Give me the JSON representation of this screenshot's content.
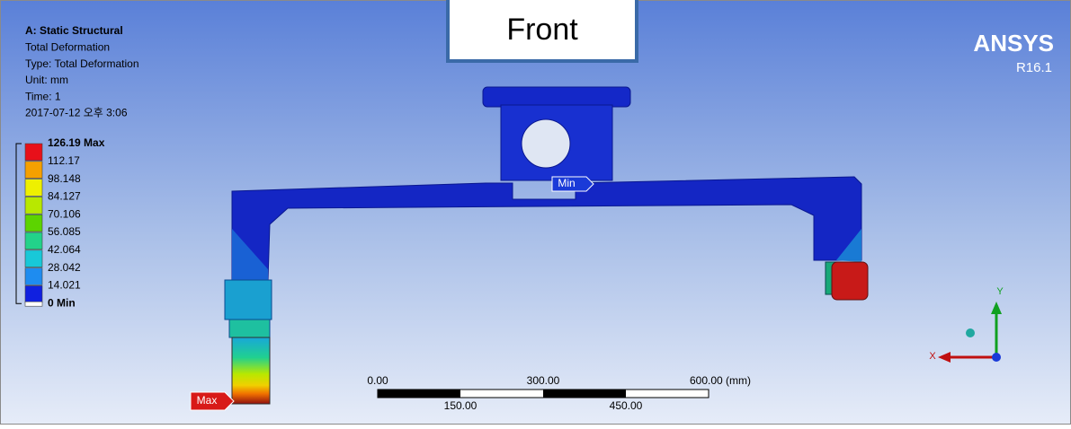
{
  "view_label": "Front",
  "header": {
    "lines": [
      "A: Static Structural",
      "Total Deformation",
      "Type: Total Deformation",
      "Unit: mm",
      "Time: 1",
      "2017-07-12 오후 3:06"
    ]
  },
  "brand": {
    "name": "ANSYS",
    "version": "R16.1"
  },
  "legend": {
    "labels": [
      "126.19 Max",
      "112.17",
      "98.148",
      "84.127",
      "70.106",
      "56.085",
      "42.064",
      "28.042",
      "14.021",
      "0 Min"
    ],
    "colors": [
      "#e8101a",
      "#f5a000",
      "#eef000",
      "#b8e800",
      "#5cd400",
      "#22d28a",
      "#18c8d8",
      "#1e8cf0",
      "#1020e0"
    ]
  },
  "probes": {
    "min": "Min",
    "max": "Max"
  },
  "scale_bar": {
    "top_labels": [
      "0.00",
      "300.00",
      "600.00 (mm)"
    ],
    "bottom_labels": [
      "150.00",
      "450.00"
    ]
  },
  "triad": {
    "y": "Y",
    "x": "X"
  }
}
